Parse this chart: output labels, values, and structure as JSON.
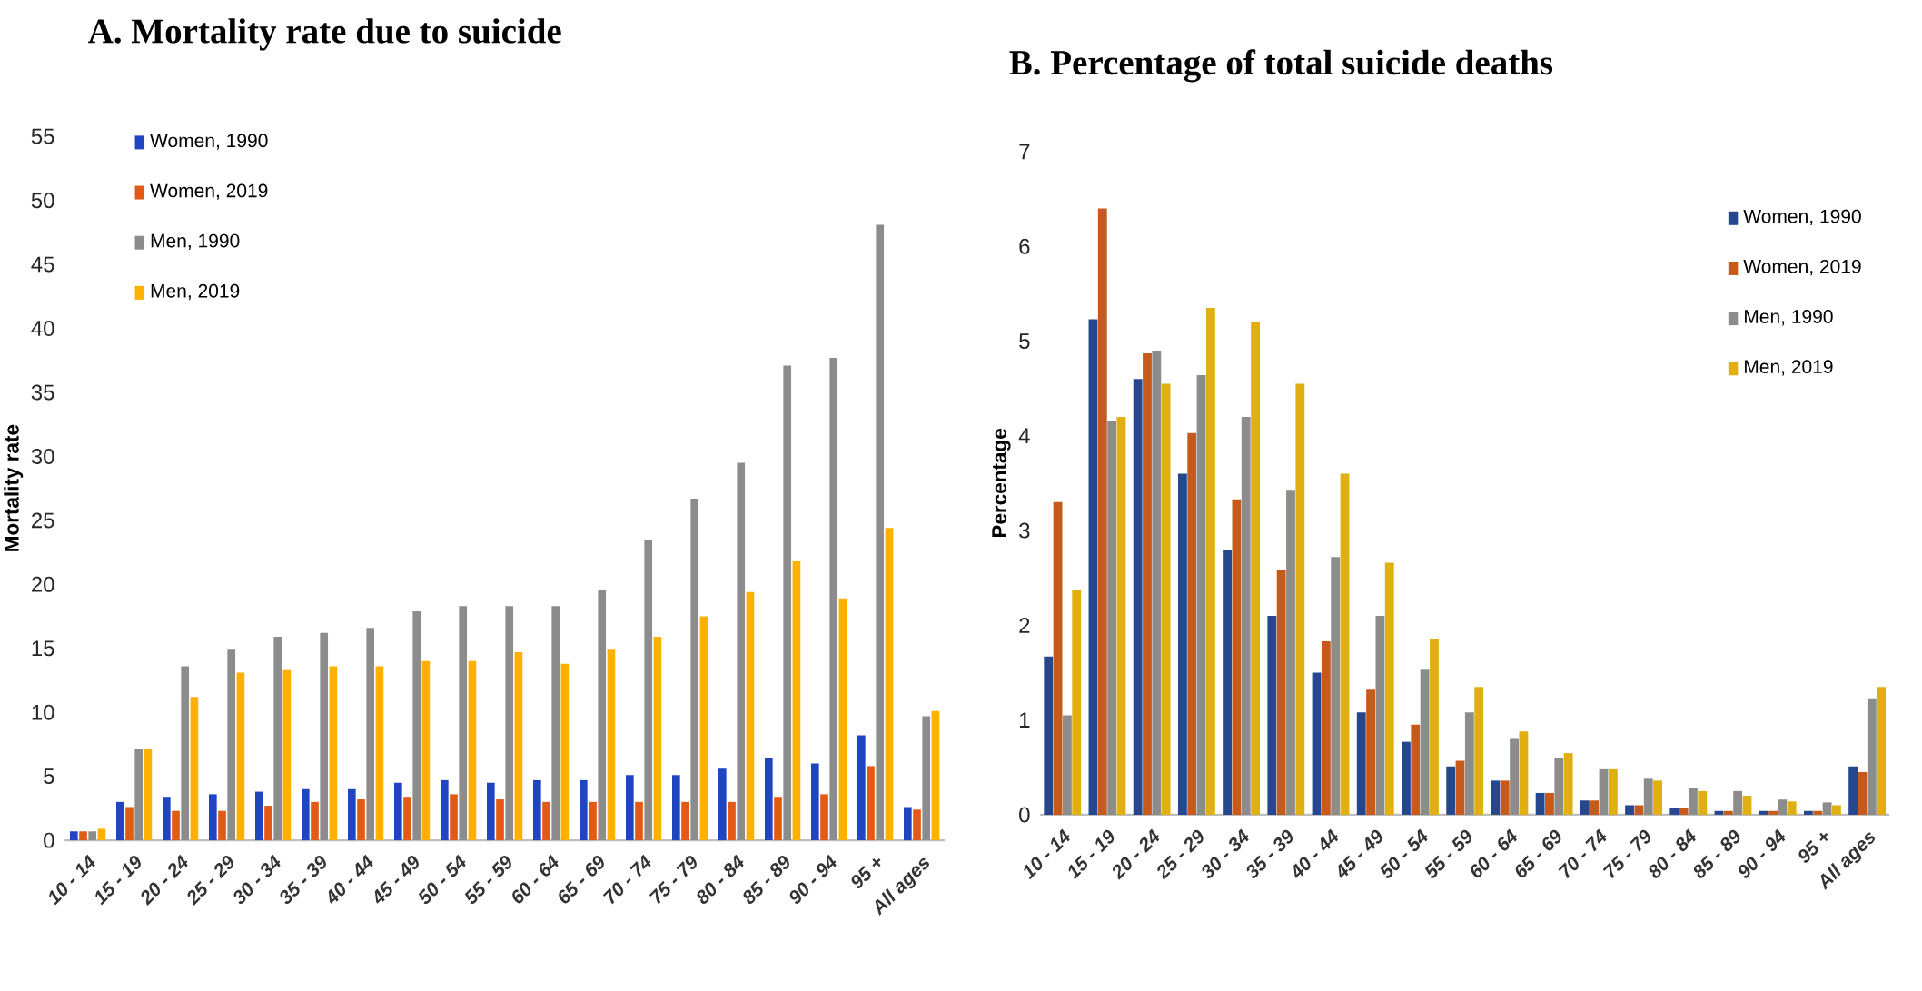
{
  "chart_data": [
    {
      "type": "bar",
      "title": "A. Mortality rate due to suicide",
      "ylabel": "Mortality rate",
      "categories": [
        "10 - 14",
        "15 - 19",
        "20 - 24",
        "25 - 29",
        "30 - 34",
        "35 - 39",
        "40 - 44",
        "45 - 49",
        "50 - 54",
        "55 - 59",
        "60 - 64",
        "65 - 69",
        "70 - 74",
        "75 - 79",
        "80 - 84",
        "85 - 89",
        "90 - 94",
        "95 +",
        "All ages"
      ],
      "series": [
        {
          "name": "Women, 1990",
          "color": "#1f45c0",
          "values": [
            0.7,
            3.0,
            3.4,
            3.6,
            3.8,
            4.0,
            4.0,
            4.5,
            4.7,
            4.5,
            4.7,
            4.7,
            5.1,
            5.1,
            5.6,
            6.4,
            6.0,
            8.2,
            2.6
          ]
        },
        {
          "name": "Women, 2019",
          "color": "#e35a16",
          "values": [
            0.7,
            2.6,
            2.3,
            2.3,
            2.7,
            3.0,
            3.2,
            3.4,
            3.6,
            3.2,
            3.0,
            3.0,
            3.0,
            3.0,
            3.0,
            3.4,
            3.6,
            5.8,
            2.4
          ]
        },
        {
          "name": "Men, 1990",
          "color": "#8c8c8c",
          "values": [
            0.7,
            7.1,
            13.6,
            14.9,
            15.9,
            16.2,
            16.6,
            17.9,
            18.3,
            18.3,
            18.3,
            19.6,
            23.5,
            26.7,
            29.5,
            37.1,
            37.7,
            48.1,
            9.7
          ]
        },
        {
          "name": "Men, 2019",
          "color": "#ffb000",
          "values": [
            0.9,
            7.1,
            11.2,
            13.1,
            13.3,
            13.6,
            13.6,
            14.0,
            14.0,
            14.7,
            13.8,
            14.9,
            15.9,
            17.5,
            19.4,
            21.8,
            18.9,
            24.4,
            10.1
          ]
        }
      ],
      "ylim": [
        0,
        55
      ],
      "yticks": [
        0,
        5,
        10,
        15,
        20,
        25,
        30,
        35,
        40,
        45,
        50,
        55
      ],
      "legend": "top left"
    },
    {
      "type": "bar",
      "title": "B. Percentage of total suicide deaths",
      "ylabel": "Percentage",
      "categories": [
        "10 - 14",
        "15 - 19",
        "20 - 24",
        "25 - 29",
        "30 - 34",
        "35 - 39",
        "40 - 44",
        "45 - 49",
        "50 - 54",
        "55 - 59",
        "60 - 64",
        "65 - 69",
        "70 - 74",
        "75 - 79",
        "80 - 84",
        "85 - 89",
        "90 - 94",
        "95 +",
        "All ages"
      ],
      "series": [
        {
          "name": "Women, 1990",
          "color": "#24478f",
          "values": [
            1.67,
            5.23,
            4.6,
            3.6,
            2.8,
            2.1,
            1.5,
            1.08,
            0.77,
            0.51,
            0.36,
            0.23,
            0.15,
            0.1,
            0.07,
            0.04,
            0.04,
            0.04,
            0.51
          ]
        },
        {
          "name": "Women, 2019",
          "color": "#c55a1a",
          "values": [
            3.3,
            6.4,
            4.87,
            4.03,
            3.33,
            2.58,
            1.83,
            1.32,
            0.95,
            0.57,
            0.36,
            0.23,
            0.15,
            0.1,
            0.07,
            0.04,
            0.04,
            0.04,
            0.45
          ]
        },
        {
          "name": "Men, 1990",
          "color": "#8c8c8c",
          "values": [
            1.05,
            4.16,
            4.9,
            4.64,
            4.2,
            3.43,
            2.72,
            2.1,
            1.53,
            1.08,
            0.8,
            0.6,
            0.48,
            0.38,
            0.28,
            0.25,
            0.16,
            0.13,
            1.23
          ]
        },
        {
          "name": "Men, 2019",
          "color": "#e0b012",
          "values": [
            2.37,
            4.2,
            4.55,
            5.35,
            5.2,
            4.55,
            3.6,
            2.66,
            1.86,
            1.35,
            0.88,
            0.65,
            0.48,
            0.36,
            0.25,
            0.2,
            0.14,
            0.1,
            1.35
          ]
        }
      ],
      "ylim": [
        0,
        7
      ],
      "yticks": [
        0,
        1,
        2,
        3,
        4,
        5,
        6,
        7
      ],
      "legend": "top right"
    }
  ]
}
